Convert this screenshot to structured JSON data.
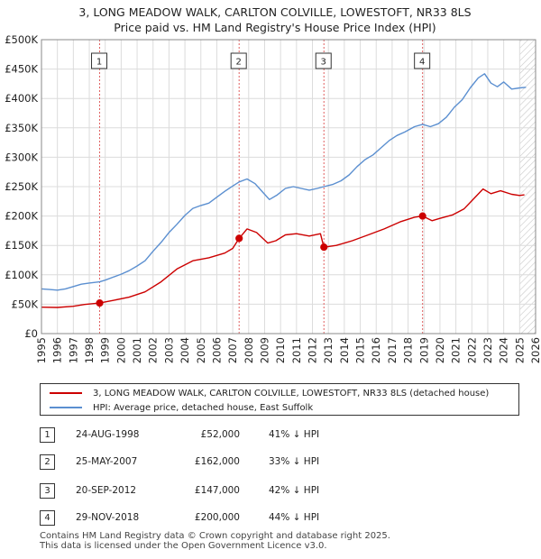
{
  "title_line1": "3, LONG MEADOW WALK, CARLTON COLVILLE, LOWESTOFT, NR33 8LS",
  "title_line2": "Price paid vs. HM Land Registry's House Price Index (HPI)",
  "chart_data": {
    "type": "line",
    "title": "3, LONG MEADOW WALK, CARLTON COLVILLE, LOWESTOFT, NR33 8LS — Price paid vs. HM Land Registry's House Price Index (HPI)",
    "xlim": [
      1995,
      2026
    ],
    "ylim": [
      0,
      500000
    ],
    "x_ticks": [
      "1995",
      "1996",
      "1997",
      "1998",
      "1999",
      "2000",
      "2001",
      "2002",
      "2003",
      "2004",
      "2005",
      "2006",
      "2007",
      "2008",
      "2009",
      "2010",
      "2011",
      "2012",
      "2013",
      "2014",
      "2015",
      "2016",
      "2017",
      "2018",
      "2019",
      "2020",
      "2021",
      "2022",
      "2023",
      "2024",
      "2025",
      "2026"
    ],
    "y_ticks": [
      {
        "value": 0,
        "label": "£0"
      },
      {
        "value": 50000,
        "label": "£50K"
      },
      {
        "value": 100000,
        "label": "£100K"
      },
      {
        "value": 150000,
        "label": "£150K"
      },
      {
        "value": 200000,
        "label": "£200K"
      },
      {
        "value": 250000,
        "label": "£250K"
      },
      {
        "value": 300000,
        "label": "£300K"
      },
      {
        "value": 350000,
        "label": "£350K"
      },
      {
        "value": 400000,
        "label": "£400K"
      },
      {
        "value": 450000,
        "label": "£450K"
      },
      {
        "value": 500000,
        "label": "£500K"
      }
    ],
    "series": [
      {
        "name": "3, LONG MEADOW WALK, CARLTON COLVILLE, LOWESTOFT, NR33 8LS (detached house)",
        "color": "#cc0000",
        "points": [
          [
            1995.0,
            45000
          ],
          [
            1996.0,
            44500
          ],
          [
            1997.0,
            46500
          ],
          [
            1997.7,
            49500
          ],
          [
            1998.65,
            52000
          ],
          [
            1999.5,
            56500
          ],
          [
            2000.5,
            62000
          ],
          [
            2001.5,
            71000
          ],
          [
            2002.5,
            88000
          ],
          [
            2003.5,
            110000
          ],
          [
            2004.5,
            124000
          ],
          [
            2005.5,
            129000
          ],
          [
            2006.5,
            137000
          ],
          [
            2007.0,
            145000
          ],
          [
            2007.4,
            162000
          ],
          [
            2007.9,
            178000
          ],
          [
            2008.5,
            172000
          ],
          [
            2009.2,
            154000
          ],
          [
            2009.7,
            158000
          ],
          [
            2010.3,
            168000
          ],
          [
            2011.0,
            170000
          ],
          [
            2011.8,
            166000
          ],
          [
            2012.5,
            170000
          ],
          [
            2012.72,
            147000
          ],
          [
            2013.5,
            150000
          ],
          [
            2014.5,
            158000
          ],
          [
            2015.5,
            168000
          ],
          [
            2016.5,
            178000
          ],
          [
            2017.5,
            190000
          ],
          [
            2018.4,
            198000
          ],
          [
            2018.91,
            200000
          ],
          [
            2019.5,
            192000
          ],
          [
            2020.0,
            196000
          ],
          [
            2020.8,
            202000
          ],
          [
            2021.5,
            212000
          ],
          [
            2022.0,
            226000
          ],
          [
            2022.7,
            246000
          ],
          [
            2023.2,
            238000
          ],
          [
            2023.8,
            243000
          ],
          [
            2024.5,
            237000
          ],
          [
            2025.0,
            235000
          ],
          [
            2025.3,
            236000
          ]
        ]
      },
      {
        "name": "HPI: Average price, detached house, East Suffolk",
        "color": "#5b8fd0",
        "points": [
          [
            1995.0,
            76000
          ],
          [
            1995.5,
            75000
          ],
          [
            1996.0,
            74000
          ],
          [
            1996.5,
            76000
          ],
          [
            1997.0,
            80000
          ],
          [
            1997.5,
            84000
          ],
          [
            1998.0,
            86000
          ],
          [
            1998.65,
            88000
          ],
          [
            1999.0,
            91000
          ],
          [
            1999.5,
            96000
          ],
          [
            2000.0,
            101000
          ],
          [
            2000.5,
            107000
          ],
          [
            2001.0,
            115000
          ],
          [
            2001.5,
            124000
          ],
          [
            2002.0,
            140000
          ],
          [
            2002.5,
            155000
          ],
          [
            2003.0,
            172000
          ],
          [
            2003.5,
            186000
          ],
          [
            2004.0,
            201000
          ],
          [
            2004.5,
            213000
          ],
          [
            2005.0,
            218000
          ],
          [
            2005.5,
            222000
          ],
          [
            2006.0,
            232000
          ],
          [
            2006.5,
            242000
          ],
          [
            2007.0,
            251000
          ],
          [
            2007.4,
            258000
          ],
          [
            2007.9,
            263000
          ],
          [
            2008.4,
            255000
          ],
          [
            2008.9,
            240000
          ],
          [
            2009.3,
            228000
          ],
          [
            2009.8,
            236000
          ],
          [
            2010.3,
            247000
          ],
          [
            2010.8,
            250000
          ],
          [
            2011.3,
            247000
          ],
          [
            2011.8,
            244000
          ],
          [
            2012.3,
            247000
          ],
          [
            2012.72,
            250000
          ],
          [
            2013.3,
            254000
          ],
          [
            2013.8,
            260000
          ],
          [
            2014.3,
            270000
          ],
          [
            2014.8,
            284000
          ],
          [
            2015.3,
            296000
          ],
          [
            2015.8,
            304000
          ],
          [
            2016.3,
            316000
          ],
          [
            2016.8,
            328000
          ],
          [
            2017.3,
            337000
          ],
          [
            2017.8,
            343000
          ],
          [
            2018.4,
            352000
          ],
          [
            2018.91,
            356000
          ],
          [
            2019.4,
            352000
          ],
          [
            2019.9,
            357000
          ],
          [
            2020.4,
            368000
          ],
          [
            2020.9,
            385000
          ],
          [
            2021.4,
            398000
          ],
          [
            2021.9,
            418000
          ],
          [
            2022.4,
            435000
          ],
          [
            2022.8,
            442000
          ],
          [
            2023.2,
            426000
          ],
          [
            2023.6,
            420000
          ],
          [
            2024.0,
            428000
          ],
          [
            2024.5,
            416000
          ],
          [
            2025.0,
            418000
          ],
          [
            2025.4,
            419000
          ]
        ]
      }
    ],
    "transactions": [
      {
        "marker": "1",
        "x": 1998.65,
        "value": 52000
      },
      {
        "marker": "2",
        "x": 2007.4,
        "value": 162000
      },
      {
        "marker": "3",
        "x": 2012.72,
        "value": 147000
      },
      {
        "marker": "4",
        "x": 2018.91,
        "value": 200000
      }
    ],
    "hatch_from": 2025.0,
    "grid": true,
    "legend_position": "bottom"
  },
  "legend": {
    "entries": [
      {
        "label": "3, LONG MEADOW WALK, CARLTON COLVILLE, LOWESTOFT, NR33 8LS (detached house)",
        "color": "#cc0000"
      },
      {
        "label": "HPI: Average price, detached house, East Suffolk",
        "color": "#5b8fd0"
      }
    ]
  },
  "transactions_table": [
    {
      "num": "1",
      "date": "24-AUG-1998",
      "price": "£52,000",
      "hpi": "41% ↓ HPI"
    },
    {
      "num": "2",
      "date": "25-MAY-2007",
      "price": "£162,000",
      "hpi": "33% ↓ HPI"
    },
    {
      "num": "3",
      "date": "20-SEP-2012",
      "price": "£147,000",
      "hpi": "42% ↓ HPI"
    },
    {
      "num": "4",
      "date": "29-NOV-2018",
      "price": "£200,000",
      "hpi": "44% ↓ HPI"
    }
  ],
  "footer": {
    "line1": "Contains HM Land Registry data © Crown copyright and database right 2025.",
    "line2": "This data is licensed under the Open Government Licence v3.0."
  }
}
